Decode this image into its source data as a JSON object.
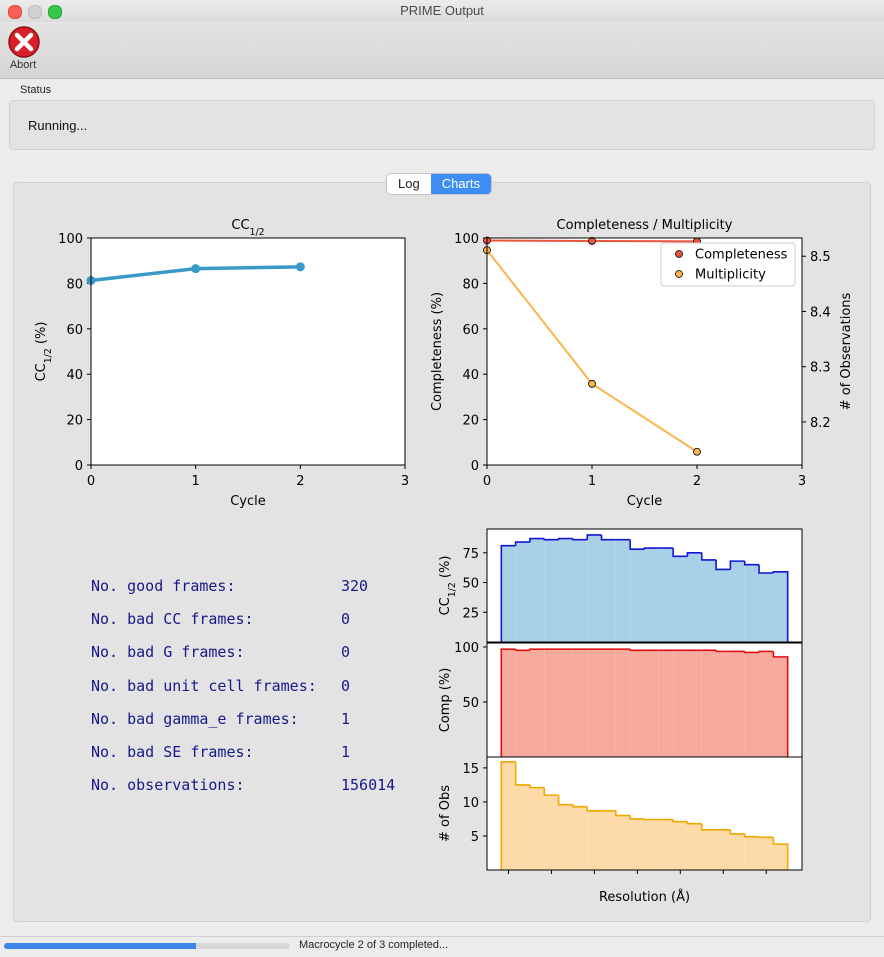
{
  "window": {
    "title": "PRIME Output"
  },
  "toolbar": {
    "abort": "Abort"
  },
  "status": {
    "label": "Status",
    "text": "Running..."
  },
  "tabs": {
    "items": [
      "Log",
      "Charts"
    ],
    "active": 1
  },
  "stats": {
    "rows": [
      [
        "No. good frames:",
        320
      ],
      [
        "No. bad CC frames:",
        0
      ],
      [
        "No. bad G frames:",
        0
      ],
      [
        "No. bad unit cell frames:",
        0
      ],
      [
        "No. bad gamma_e frames:",
        1
      ],
      [
        "No. bad SE frames:",
        1
      ],
      [
        "No. observations:",
        156014
      ]
    ]
  },
  "statusbar": {
    "text": "Macrocycle 2 of 3 completed...",
    "progress": 0.67
  },
  "chart_data": [
    {
      "type": "line",
      "title": [
        "CC",
        "1/2"
      ],
      "x": [
        0,
        1,
        2
      ],
      "values": [
        81.3,
        86.5,
        87.3
      ],
      "color": "#3a9ac6",
      "xlim": [
        0,
        3
      ],
      "xticks": [
        0,
        1,
        2,
        3
      ],
      "ylim": [
        0,
        100
      ],
      "yticks": [
        0,
        20,
        40,
        60,
        80,
        100
      ],
      "xlabel": "Cycle",
      "ylabel": [
        "CC",
        "1/2",
        " (%)"
      ]
    },
    {
      "type": "line",
      "title": "Completeness / Multiplicity",
      "x": [
        0,
        1,
        2
      ],
      "series": [
        {
          "name": "Completeness",
          "color": "#e8553a",
          "values": [
            98.9,
            98.7,
            98.5
          ]
        },
        {
          "name": "Multiplicity",
          "color": "#fbb54c",
          "values": [
            8.511,
            8.269,
            8.146
          ],
          "axis": "y2"
        }
      ],
      "xlim": [
        0,
        3
      ],
      "xticks": [
        0,
        1,
        2,
        3
      ],
      "ylim": [
        0,
        100
      ],
      "yticks": [
        0,
        20,
        40,
        60,
        80,
        100
      ],
      "y2lim": [
        8.122,
        8.533
      ],
      "y2ticks": [
        8.2,
        8.3,
        8.4,
        8.5
      ],
      "xlabel": "Cycle",
      "ylabel": "Completeness (%)",
      "y2label": "# of Observations",
      "legend": "upper right"
    },
    {
      "type": "histogram",
      "bins": [
        0,
        1,
        2,
        3,
        4,
        5,
        6,
        7,
        8,
        9,
        10,
        11,
        12,
        13,
        14,
        15,
        16,
        17,
        18,
        19,
        20
      ],
      "values": [
        81,
        84,
        87,
        86,
        87,
        86,
        90,
        86,
        86,
        78,
        79,
        79,
        72,
        75,
        69,
        61,
        68,
        65,
        58,
        59
      ],
      "color": "#a8d0e6",
      "edge_color": "#1414d8",
      "xlim": [
        -1,
        21
      ],
      "ylim": [
        0,
        95
      ],
      "yticks": [
        25,
        50,
        75
      ],
      "ylabel": [
        "CC",
        "1/2",
        " (%)"
      ]
    },
    {
      "type": "histogram",
      "bins": [
        0,
        1,
        2,
        3,
        4,
        5,
        6,
        7,
        8,
        9,
        10,
        11,
        12,
        13,
        14,
        15,
        16,
        17,
        18,
        19,
        20
      ],
      "values": [
        98,
        97,
        98,
        98,
        98,
        98,
        98,
        98,
        98,
        97,
        97,
        97,
        97,
        97,
        97,
        96,
        96,
        95,
        96,
        91
      ],
      "color": "#f8aa9e",
      "edge_color": "#e01010",
      "xlim": [
        -1,
        21
      ],
      "ylim": [
        0,
        103.6
      ],
      "yticks": [
        50,
        100
      ],
      "ylabel": "Comp (%)"
    },
    {
      "type": "histogram",
      "bins": [
        0,
        1,
        2,
        3,
        4,
        5,
        6,
        7,
        8,
        9,
        10,
        11,
        12,
        13,
        14,
        15,
        16,
        17,
        18,
        19,
        20
      ],
      "values": [
        15.9,
        12.5,
        12.1,
        11.0,
        9.6,
        9.3,
        8.7,
        8.7,
        8.0,
        7.5,
        7.4,
        7.4,
        7.1,
        6.8,
        5.9,
        5.9,
        5.3,
        4.9,
        4.8,
        3.8
      ],
      "color": "#fddba8",
      "edge_color": "#f0a800",
      "xlim": [
        -1,
        21
      ],
      "ylim": [
        0,
        16.6
      ],
      "yticks": [
        5,
        10,
        15
      ],
      "xticks": [
        0.5,
        3.5,
        6.5,
        9.5,
        12.5,
        15.5,
        18.5
      ],
      "ylabel": "# of Obs",
      "xlabel": "Resolution (Å)"
    }
  ]
}
